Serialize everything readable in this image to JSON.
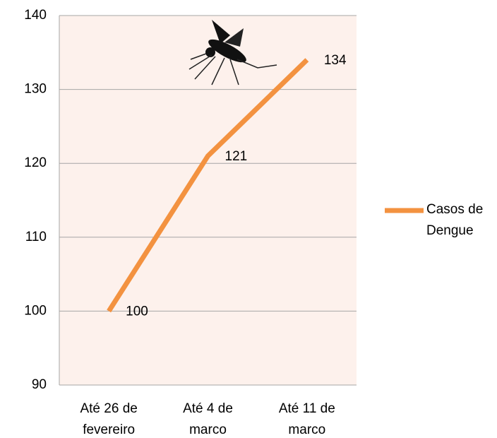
{
  "chart_data": {
    "type": "line",
    "categories": [
      "Até 26 de fevereiro",
      "Até 4 de marco",
      "Até 11 de marco"
    ],
    "series": [
      {
        "name": "Casos de Dengue",
        "color": "#f39240",
        "values": [
          100,
          121,
          134
        ]
      }
    ],
    "ylim": [
      90,
      140
    ],
    "yticks": [
      90,
      100,
      110,
      120,
      130,
      140
    ],
    "grid": true,
    "legend": "right",
    "plot_background": "#fdf1ec"
  }
}
